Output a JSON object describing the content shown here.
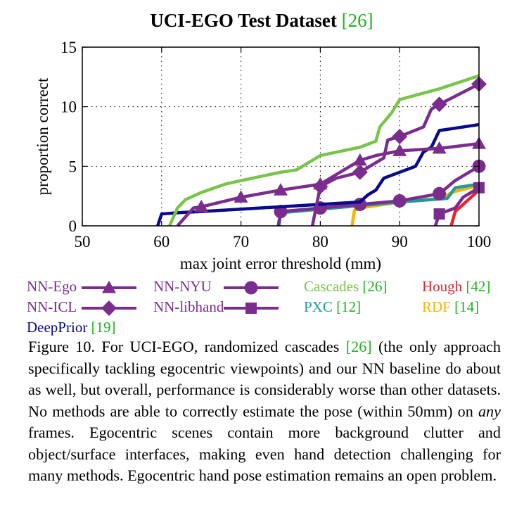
{
  "chart_data": {
    "type": "line",
    "title": "UCI-EGO Test Dataset",
    "title_ref": "[26]",
    "xlabel": "max joint error threshold (mm)",
    "ylabel": "proportion correct",
    "xlim": [
      50,
      100
    ],
    "ylim": [
      0,
      15
    ],
    "xticks": [
      "50",
      "60",
      "70",
      "80",
      "90",
      "100"
    ],
    "yticks": [
      "0",
      "5",
      "10",
      "15"
    ],
    "grid": true,
    "legend_position": "below",
    "series": [
      {
        "name": "NN-Ego",
        "color": "#7b2d8e",
        "marker": "triangle",
        "width": 4.5,
        "x": [
          62,
          64,
          65,
          70,
          75,
          80,
          85,
          87,
          90,
          95,
          100
        ],
        "y": [
          0,
          1.5,
          1.6,
          2.4,
          3.0,
          3.5,
          5.5,
          5.9,
          6.3,
          6.5,
          6.9
        ],
        "marker_x": [
          65,
          70,
          75,
          80,
          85,
          90,
          95,
          100
        ]
      },
      {
        "name": "NN-ICL",
        "color": "#7b2d8e",
        "marker": "diamond",
        "width": 4.5,
        "x": [
          79,
          80,
          82,
          85,
          88,
          88.5,
          90,
          93,
          94,
          95,
          100
        ],
        "y": [
          0,
          3.3,
          4.0,
          4.5,
          5.7,
          7.2,
          7.5,
          8.3,
          9.8,
          10.2,
          11.9
        ],
        "marker_x": [
          80,
          85,
          90,
          95,
          100
        ]
      },
      {
        "name": "NN-NYU",
        "color": "#7b2d8e",
        "marker": "circle",
        "width": 4.5,
        "x": [
          74.7,
          75,
          80,
          85,
          90,
          95,
          97,
          100
        ],
        "y": [
          0,
          1.2,
          1.5,
          1.8,
          2.1,
          2.7,
          3.8,
          5.0
        ],
        "marker_x": [
          75,
          80,
          85,
          90,
          95,
          100
        ]
      },
      {
        "name": "NN-libhand",
        "color": "#7b2d8e",
        "marker": "square",
        "width": 4.5,
        "x": [
          94.5,
          95,
          97,
          98,
          100
        ],
        "y": [
          0,
          1.0,
          1.5,
          2.4,
          3.2
        ],
        "marker_x": [
          95,
          100
        ]
      },
      {
        "name": "DeepPrior",
        "color": "#0a0a8c",
        "marker": "none",
        "width": 4.5,
        "x": [
          59.5,
          60,
          62,
          65,
          70,
          75,
          80,
          85,
          86,
          87,
          88,
          90,
          92,
          93,
          94,
          95,
          100
        ],
        "y": [
          0,
          1.0,
          1.1,
          1.2,
          1.4,
          1.6,
          1.8,
          2.0,
          2.6,
          3.0,
          4.0,
          4.5,
          5.0,
          6.2,
          6.6,
          8.0,
          8.5
        ]
      },
      {
        "name": "Cascades",
        "color": "#7ac44c",
        "marker": "none",
        "width": 4.5,
        "x": [
          61,
          62,
          63,
          65,
          68,
          70,
          75,
          77,
          80,
          85,
          87,
          87.5,
          89,
          90,
          95,
          100
        ],
        "y": [
          0,
          1.5,
          2.2,
          2.8,
          3.5,
          3.8,
          4.5,
          4.7,
          5.9,
          6.6,
          7.1,
          8.3,
          9.5,
          10.6,
          11.5,
          12.6
        ]
      },
      {
        "name": "PXC",
        "color": "#1f9b9b",
        "marker": "none",
        "width": 4.5,
        "x": [
          74.8,
          75,
          80,
          85,
          90,
          96,
          97,
          100
        ],
        "y": [
          0,
          1.1,
          1.4,
          1.7,
          2.0,
          2.3,
          3.2,
          3.5
        ]
      },
      {
        "name": "RDF",
        "color": "#f5b400",
        "marker": "none",
        "width": 4.5,
        "x": [
          84,
          84.3,
          85,
          87,
          90,
          95,
          97,
          100
        ],
        "y": [
          0,
          1.3,
          1.5,
          1.7,
          2.0,
          2.3,
          2.9,
          3.4
        ]
      },
      {
        "name": "Hough",
        "color": "#e8232c",
        "marker": "none",
        "width": 4.5,
        "x": [
          96.5,
          97,
          98,
          99,
          100
        ],
        "y": [
          0,
          1.2,
          1.8,
          2.4,
          3.0
        ]
      }
    ]
  },
  "legend": [
    {
      "label": "NN-Ego",
      "ref": "",
      "color": "#7b2d8e",
      "marker": "triangle"
    },
    {
      "label": "NN-ICL",
      "ref": "",
      "color": "#7b2d8e",
      "marker": "diamond"
    },
    {
      "label": "DeepPrior",
      "ref": "[19]",
      "color": "#0a0a8c",
      "marker": "none"
    },
    {
      "label": "NN-NYU",
      "ref": "",
      "color": "#7b2d8e",
      "marker": "circle"
    },
    {
      "label": "NN-libhand",
      "ref": "",
      "color": "#7b2d8e",
      "marker": "square"
    },
    {
      "label": "Cascades",
      "ref": "[26]",
      "color": "#7ac44c",
      "marker": "none"
    },
    {
      "label": "PXC",
      "ref": "[12]",
      "color": "#1f9b9b",
      "marker": "none"
    },
    {
      "label": "Hough",
      "ref": "[42]",
      "color": "#e8232c",
      "marker": "none"
    },
    {
      "label": "RDF",
      "ref": "[14]",
      "color": "#f5b400",
      "marker": "none"
    }
  ],
  "caption": {
    "lead": "Figure 10. For UCI-EGO, randomized cascades ",
    "ref": "[26]",
    "mid": " (the only approach specifically tackling egocentric viewpoints) and our NN baseline do about as well, but overall, performance is considerably worse than other datasets.  No methods are able to correctly estimate the pose (within 50mm) on ",
    "emph": "any",
    "tail": " frames. Egocentric scenes contain more background clutter and object/surface interfaces, making even hand detection challenging for many methods. Egocentric hand pose estimation remains an open problem."
  }
}
